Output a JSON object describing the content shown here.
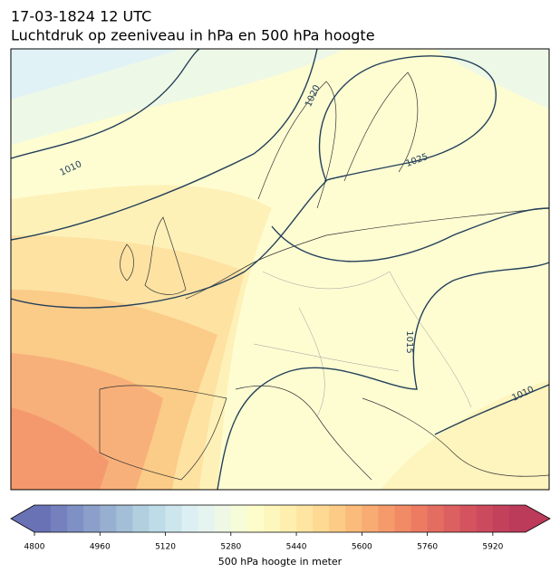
{
  "header": {
    "line1": "17-03-1824 12 UTC",
    "line2": "Luchtdruk op zeeniveau in hPa en 500 hPa hoogte"
  },
  "map": {
    "isobar_labels": [
      "1010",
      "1020",
      "1025",
      "1015",
      "1010"
    ]
  },
  "colorbar": {
    "range": [
      4800,
      6000
    ],
    "ticks": [
      4800,
      4960,
      5120,
      5280,
      5440,
      5600,
      5760,
      5920
    ],
    "label": "500 hPa hoogte in meter",
    "colors": [
      "#6a72b6",
      "#7481bd",
      "#7f90c4",
      "#8b9fca",
      "#97afd1",
      "#a3bfd7",
      "#b0cfdf",
      "#bedce7",
      "#cde6ee",
      "#dcf0f4",
      "#e6f4f0",
      "#eef8e4",
      "#f6fbd8",
      "#fdfdcb",
      "#fef7bd",
      "#feefae",
      "#fee5a1",
      "#fdd993",
      "#fccb86",
      "#fabb7b",
      "#f8ab72",
      "#f59b6b",
      "#f18b66",
      "#ec7b62",
      "#e46d61",
      "#dc6060",
      "#d4535f",
      "#cc4a5e",
      "#c4415c",
      "#bc3a5a"
    ]
  }
}
